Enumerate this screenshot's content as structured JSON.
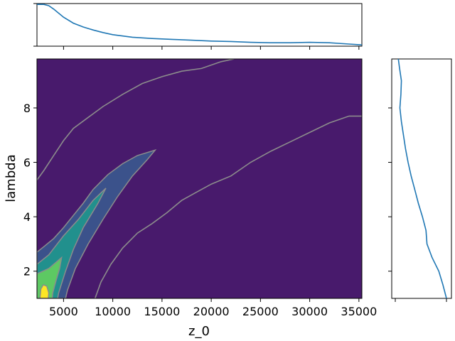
{
  "chart_data": {
    "type": "contour",
    "xlabel": "z_0",
    "ylabel": "lambda",
    "xlim": [
      2300,
      35300
    ],
    "ylim": [
      1.0,
      9.8
    ],
    "x_ticks": [
      5000,
      10000,
      15000,
      20000,
      25000,
      30000,
      35000
    ],
    "x_tick_labels": [
      "5000",
      "10000",
      "15000",
      "20000",
      "25000",
      "30000",
      "35000"
    ],
    "y_ticks": [
      2,
      4,
      6,
      8
    ],
    "y_tick_labels": [
      "2",
      "4",
      "6",
      "8"
    ],
    "colormap": [
      "#440154",
      "#3b528b",
      "#21908d",
      "#5dc963",
      "#fde725"
    ],
    "background_color": "#481a6c",
    "contour_line_color": "#8c8c8c",
    "marginal_line_color": "#1f77b4",
    "contour_levels": [
      {
        "level": 1,
        "color": "#3b528b",
        "points": [
          [
            2300,
            2.7
          ],
          [
            3000,
            2.9
          ],
          [
            4000,
            3.2
          ],
          [
            5000,
            3.6
          ],
          [
            6000,
            4.05
          ],
          [
            7000,
            4.5
          ],
          [
            8000,
            5.0
          ],
          [
            9500,
            5.55
          ],
          [
            11000,
            5.95
          ],
          [
            12500,
            6.25
          ],
          [
            14300,
            6.45
          ],
          [
            13500,
            6.1
          ],
          [
            12000,
            5.5
          ],
          [
            10500,
            4.75
          ],
          [
            9000,
            3.9
          ],
          [
            7500,
            3.0
          ],
          [
            6200,
            2.1
          ],
          [
            5400,
            1.3
          ],
          [
            5200,
            1.0
          ],
          [
            2300,
            1.0
          ]
        ]
      },
      {
        "level": 2,
        "color": "#21908d",
        "points": [
          [
            2300,
            2.25
          ],
          [
            3500,
            2.6
          ],
          [
            5000,
            3.3
          ],
          [
            6500,
            3.9
          ],
          [
            8000,
            4.6
          ],
          [
            9300,
            5.05
          ],
          [
            8500,
            4.5
          ],
          [
            7000,
            3.6
          ],
          [
            6000,
            2.8
          ],
          [
            5200,
            2.0
          ],
          [
            4500,
            1.2
          ],
          [
            4400,
            1.0
          ],
          [
            2300,
            1.0
          ]
        ]
      },
      {
        "level": 3,
        "color": "#5dc963",
        "points": [
          [
            2300,
            1.9
          ],
          [
            3500,
            2.1
          ],
          [
            4800,
            2.5
          ],
          [
            4600,
            2.1
          ],
          [
            4200,
            1.6
          ],
          [
            3900,
            1.2
          ],
          [
            3850,
            1.0
          ],
          [
            2300,
            1.0
          ]
        ]
      },
      {
        "level": 4,
        "color": "#fde725",
        "points": [
          [
            2600,
            1.0
          ],
          [
            2700,
            1.35
          ],
          [
            2950,
            1.5
          ],
          [
            3300,
            1.45
          ],
          [
            3500,
            1.2
          ],
          [
            3450,
            1.0
          ]
        ]
      }
    ],
    "outer_contours": [
      [
        [
          2300,
          5.35
        ],
        [
          3000,
          5.7
        ],
        [
          4000,
          6.25
        ],
        [
          5000,
          6.8
        ],
        [
          6000,
          7.25
        ],
        [
          7500,
          7.65
        ],
        [
          9000,
          8.05
        ],
        [
          11000,
          8.5
        ],
        [
          13000,
          8.9
        ],
        [
          15000,
          9.15
        ],
        [
          17000,
          9.35
        ],
        [
          19000,
          9.45
        ],
        [
          21000,
          9.7
        ],
        [
          22300,
          9.8
        ]
      ],
      [
        [
          8200,
          1.0
        ],
        [
          8800,
          1.6
        ],
        [
          9800,
          2.25
        ],
        [
          11000,
          2.85
        ],
        [
          12500,
          3.4
        ],
        [
          14000,
          3.75
        ],
        [
          15500,
          4.15
        ],
        [
          17000,
          4.6
        ],
        [
          18500,
          4.9
        ],
        [
          20000,
          5.2
        ],
        [
          22000,
          5.5
        ],
        [
          24000,
          6.0
        ],
        [
          26000,
          6.4
        ],
        [
          28000,
          6.75
        ],
        [
          30000,
          7.1
        ],
        [
          32000,
          7.45
        ],
        [
          34000,
          7.7
        ],
        [
          35300,
          7.7
        ]
      ]
    ],
    "marginal_x": {
      "x": [
        2300,
        3000,
        3500,
        4000,
        5000,
        6000,
        7000,
        8000,
        9000,
        10000,
        12000,
        14000,
        16000,
        18000,
        20000,
        22000,
        24000,
        26000,
        28000,
        30000,
        32000,
        34000,
        35300
      ],
      "density": [
        0.98,
        0.98,
        0.95,
        0.87,
        0.68,
        0.54,
        0.45,
        0.38,
        0.32,
        0.27,
        0.21,
        0.18,
        0.16,
        0.14,
        0.12,
        0.11,
        0.09,
        0.08,
        0.08,
        0.09,
        0.08,
        0.05,
        0.03
      ]
    },
    "marginal_y": {
      "y": [
        1.0,
        1.5,
        2.0,
        2.5,
        3.0,
        3.5,
        4.0,
        4.5,
        5.0,
        5.5,
        6.0,
        6.5,
        7.0,
        7.5,
        8.0,
        8.5,
        9.0,
        9.5,
        9.8
      ],
      "density": [
        1.0,
        0.93,
        0.85,
        0.72,
        0.62,
        0.6,
        0.53,
        0.45,
        0.38,
        0.31,
        0.25,
        0.2,
        0.16,
        0.12,
        0.09,
        0.11,
        0.12,
        0.08,
        0.06
      ]
    }
  }
}
